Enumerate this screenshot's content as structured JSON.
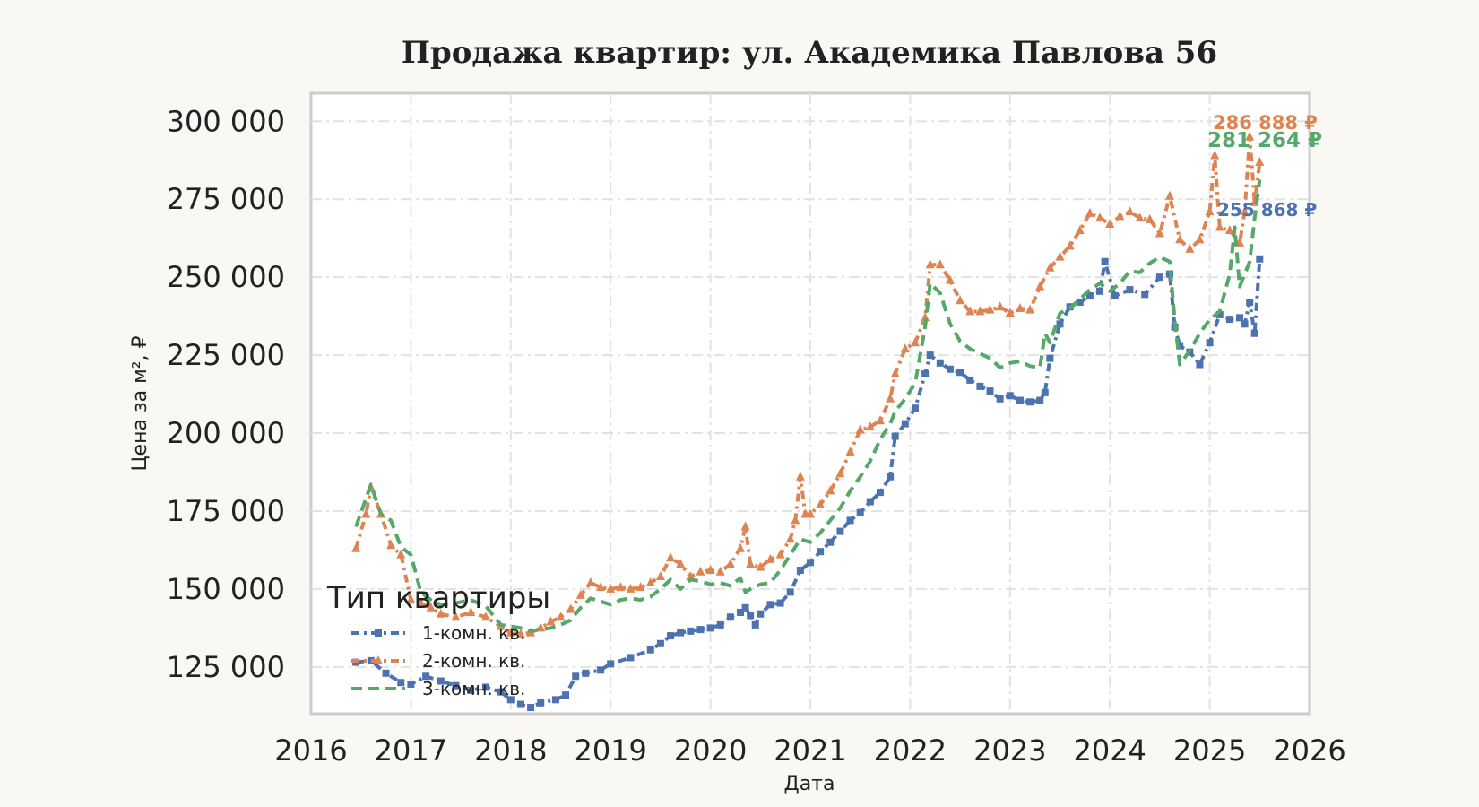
{
  "chart_data": {
    "type": "line",
    "title": "Продажа квартир: ул. Академика Павлова 56",
    "xlabel": "Дата",
    "ylabel": "Цена за м², ₽",
    "xlim": [
      2016,
      2026
    ],
    "ylim": [
      110000,
      309000
    ],
    "x_ticks": [
      "2016",
      "2017",
      "2018",
      "2019",
      "2020",
      "2021",
      "2022",
      "2023",
      "2024",
      "2025",
      "2026"
    ],
    "y_ticks": [
      {
        "value": 125000,
        "label": "125 000"
      },
      {
        "value": 150000,
        "label": "150 000"
      },
      {
        "value": 175000,
        "label": "175 000"
      },
      {
        "value": 200000,
        "label": "200 000"
      },
      {
        "value": 225000,
        "label": "225 000"
      },
      {
        "value": 250000,
        "label": "250 000"
      },
      {
        "value": 275000,
        "label": "275 000"
      },
      {
        "value": 300000,
        "label": "300 000"
      }
    ],
    "grid": true,
    "legend": {
      "title": "Тип квартиры",
      "position": "lower-left"
    },
    "series": [
      {
        "name": "1-комн. кв.",
        "color": "#4c72b0",
        "dash": "dashdot",
        "marker": "square",
        "end_label": "255 868 ₽",
        "points": [
          [
            2016.45,
            126500
          ],
          [
            2016.6,
            127000
          ],
          [
            2016.75,
            123000
          ],
          [
            2016.9,
            120000
          ],
          [
            2017.0,
            119500
          ],
          [
            2017.15,
            122000
          ],
          [
            2017.3,
            120500
          ],
          [
            2017.45,
            119000
          ],
          [
            2017.6,
            117500
          ],
          [
            2017.75,
            118500
          ],
          [
            2017.9,
            117000
          ],
          [
            2018.0,
            114500
          ],
          [
            2018.1,
            113000
          ],
          [
            2018.2,
            112000
          ],
          [
            2018.3,
            113500
          ],
          [
            2018.45,
            114500
          ],
          [
            2018.55,
            116000
          ],
          [
            2018.65,
            122000
          ],
          [
            2018.75,
            123000
          ],
          [
            2018.9,
            124000
          ],
          [
            2019.0,
            126000
          ],
          [
            2019.2,
            128000
          ],
          [
            2019.4,
            130500
          ],
          [
            2019.5,
            132500
          ],
          [
            2019.6,
            135000
          ],
          [
            2019.7,
            136000
          ],
          [
            2019.8,
            136500
          ],
          [
            2019.9,
            137000
          ],
          [
            2020.0,
            137500
          ],
          [
            2020.1,
            138500
          ],
          [
            2020.2,
            141000
          ],
          [
            2020.3,
            142500
          ],
          [
            2020.35,
            144000
          ],
          [
            2020.4,
            141500
          ],
          [
            2020.45,
            138500
          ],
          [
            2020.5,
            142000
          ],
          [
            2020.6,
            145000
          ],
          [
            2020.7,
            145500
          ],
          [
            2020.8,
            149000
          ],
          [
            2020.9,
            156000
          ],
          [
            2021.0,
            158500
          ],
          [
            2021.1,
            162000
          ],
          [
            2021.2,
            165000
          ],
          [
            2021.3,
            168500
          ],
          [
            2021.4,
            172000
          ],
          [
            2021.5,
            174500
          ],
          [
            2021.6,
            178000
          ],
          [
            2021.7,
            181000
          ],
          [
            2021.8,
            186000
          ],
          [
            2021.85,
            199000
          ],
          [
            2021.95,
            203000
          ],
          [
            2022.05,
            208000
          ],
          [
            2022.15,
            219000
          ],
          [
            2022.2,
            225000
          ],
          [
            2022.3,
            222500
          ],
          [
            2022.4,
            220500
          ],
          [
            2022.5,
            219500
          ],
          [
            2022.6,
            217000
          ],
          [
            2022.7,
            215000
          ],
          [
            2022.8,
            213500
          ],
          [
            2022.9,
            211000
          ],
          [
            2023.0,
            212000
          ],
          [
            2023.1,
            210500
          ],
          [
            2023.2,
            210000
          ],
          [
            2023.3,
            210500
          ],
          [
            2023.35,
            213000
          ],
          [
            2023.4,
            224000
          ],
          [
            2023.5,
            235000
          ],
          [
            2023.6,
            240500
          ],
          [
            2023.7,
            242000
          ],
          [
            2023.8,
            244000
          ],
          [
            2023.9,
            245500
          ],
          [
            2023.95,
            255000
          ],
          [
            2024.05,
            244000
          ],
          [
            2024.2,
            246000
          ],
          [
            2024.35,
            244500
          ],
          [
            2024.5,
            250000
          ],
          [
            2024.6,
            251000
          ],
          [
            2024.65,
            234000
          ],
          [
            2024.7,
            228000
          ],
          [
            2024.8,
            226000
          ],
          [
            2024.9,
            222000
          ],
          [
            2025.0,
            229000
          ],
          [
            2025.1,
            238000
          ],
          [
            2025.2,
            236500
          ],
          [
            2025.3,
            237000
          ],
          [
            2025.35,
            235000
          ],
          [
            2025.4,
            242000
          ],
          [
            2025.45,
            232000
          ],
          [
            2025.5,
            255868
          ]
        ]
      },
      {
        "name": "2-комн. кв.",
        "color": "#dd8452",
        "dash": "dashdot",
        "marker": "triangle",
        "end_label": "286 888 ₽",
        "points": [
          [
            2016.45,
            163000
          ],
          [
            2016.55,
            174000
          ],
          [
            2016.6,
            182500
          ],
          [
            2016.7,
            174000
          ],
          [
            2016.8,
            164000
          ],
          [
            2016.9,
            161000
          ],
          [
            2017.0,
            146500
          ],
          [
            2017.1,
            145500
          ],
          [
            2017.2,
            144000
          ],
          [
            2017.3,
            142000
          ],
          [
            2017.45,
            141000
          ],
          [
            2017.6,
            142500
          ],
          [
            2017.75,
            141000
          ],
          [
            2017.9,
            138000
          ],
          [
            2018.0,
            136000
          ],
          [
            2018.1,
            135500
          ],
          [
            2018.2,
            136000
          ],
          [
            2018.3,
            137500
          ],
          [
            2018.4,
            139500
          ],
          [
            2018.5,
            141000
          ],
          [
            2018.6,
            143500
          ],
          [
            2018.7,
            148000
          ],
          [
            2018.8,
            152000
          ],
          [
            2018.9,
            150500
          ],
          [
            2019.0,
            150000
          ],
          [
            2019.1,
            150500
          ],
          [
            2019.2,
            150000
          ],
          [
            2019.3,
            150500
          ],
          [
            2019.4,
            152000
          ],
          [
            2019.5,
            154000
          ],
          [
            2019.6,
            160000
          ],
          [
            2019.7,
            158000
          ],
          [
            2019.8,
            154000
          ],
          [
            2019.9,
            155500
          ],
          [
            2020.0,
            156000
          ],
          [
            2020.1,
            155500
          ],
          [
            2020.2,
            158000
          ],
          [
            2020.3,
            163000
          ],
          [
            2020.35,
            170000
          ],
          [
            2020.4,
            158000
          ],
          [
            2020.5,
            157000
          ],
          [
            2020.6,
            159500
          ],
          [
            2020.7,
            161000
          ],
          [
            2020.8,
            166000
          ],
          [
            2020.85,
            172000
          ],
          [
            2020.9,
            186000
          ],
          [
            2020.95,
            174000
          ],
          [
            2021.0,
            174000
          ],
          [
            2021.1,
            177000
          ],
          [
            2021.2,
            181500
          ],
          [
            2021.3,
            187000
          ],
          [
            2021.4,
            194000
          ],
          [
            2021.5,
            201000
          ],
          [
            2021.6,
            202000
          ],
          [
            2021.7,
            204000
          ],
          [
            2021.8,
            211000
          ],
          [
            2021.85,
            219000
          ],
          [
            2021.95,
            227000
          ],
          [
            2022.05,
            229000
          ],
          [
            2022.15,
            237000
          ],
          [
            2022.2,
            254000
          ],
          [
            2022.3,
            254000
          ],
          [
            2022.4,
            249000
          ],
          [
            2022.5,
            242500
          ],
          [
            2022.6,
            239000
          ],
          [
            2022.7,
            239000
          ],
          [
            2022.8,
            239500
          ],
          [
            2022.9,
            240500
          ],
          [
            2023.0,
            238500
          ],
          [
            2023.1,
            240000
          ],
          [
            2023.2,
            239500
          ],
          [
            2023.3,
            247000
          ],
          [
            2023.4,
            253000
          ],
          [
            2023.5,
            256500
          ],
          [
            2023.6,
            260000
          ],
          [
            2023.7,
            265000
          ],
          [
            2023.8,
            270500
          ],
          [
            2023.9,
            269000
          ],
          [
            2024.0,
            267000
          ],
          [
            2024.1,
            269500
          ],
          [
            2024.2,
            271000
          ],
          [
            2024.3,
            269000
          ],
          [
            2024.4,
            268500
          ],
          [
            2024.5,
            264000
          ],
          [
            2024.6,
            276000
          ],
          [
            2024.7,
            262000
          ],
          [
            2024.8,
            259000
          ],
          [
            2024.9,
            262000
          ],
          [
            2025.0,
            271000
          ],
          [
            2025.05,
            289000
          ],
          [
            2025.1,
            266000
          ],
          [
            2025.2,
            265000
          ],
          [
            2025.3,
            261000
          ],
          [
            2025.35,
            271000
          ],
          [
            2025.4,
            295000
          ],
          [
            2025.45,
            274000
          ],
          [
            2025.5,
            286888
          ]
        ]
      },
      {
        "name": "3-комн. кв.",
        "color": "#55a868",
        "dash": "dashed",
        "marker": "none",
        "end_label": "281 264 ₽",
        "points": [
          [
            2016.45,
            170000
          ],
          [
            2016.55,
            179000
          ],
          [
            2016.6,
            183500
          ],
          [
            2016.7,
            174000
          ],
          [
            2016.8,
            172000
          ],
          [
            2016.9,
            163500
          ],
          [
            2017.0,
            161000
          ],
          [
            2017.1,
            149000
          ],
          [
            2017.2,
            146500
          ],
          [
            2017.3,
            145000
          ],
          [
            2017.45,
            145500
          ],
          [
            2017.6,
            146500
          ],
          [
            2017.75,
            144500
          ],
          [
            2017.9,
            138500
          ],
          [
            2018.0,
            138000
          ],
          [
            2018.1,
            137500
          ],
          [
            2018.2,
            136500
          ],
          [
            2018.3,
            137000
          ],
          [
            2018.4,
            137500
          ],
          [
            2018.5,
            138500
          ],
          [
            2018.6,
            140000
          ],
          [
            2018.7,
            144000
          ],
          [
            2018.8,
            147000
          ],
          [
            2018.9,
            146000
          ],
          [
            2019.0,
            145000
          ],
          [
            2019.1,
            146500
          ],
          [
            2019.2,
            147000
          ],
          [
            2019.3,
            146500
          ],
          [
            2019.4,
            147500
          ],
          [
            2019.5,
            150000
          ],
          [
            2019.6,
            153000
          ],
          [
            2019.7,
            150000
          ],
          [
            2019.8,
            153000
          ],
          [
            2019.9,
            152500
          ],
          [
            2020.0,
            151500
          ],
          [
            2020.1,
            152000
          ],
          [
            2020.2,
            151000
          ],
          [
            2020.3,
            153500
          ],
          [
            2020.35,
            149000
          ],
          [
            2020.4,
            150000
          ],
          [
            2020.5,
            151500
          ],
          [
            2020.6,
            152000
          ],
          [
            2020.7,
            156000
          ],
          [
            2020.8,
            161000
          ],
          [
            2020.9,
            166000
          ],
          [
            2021.0,
            165000
          ],
          [
            2021.1,
            168000
          ],
          [
            2021.2,
            172000
          ],
          [
            2021.3,
            176000
          ],
          [
            2021.4,
            181500
          ],
          [
            2021.5,
            186000
          ],
          [
            2021.6,
            191000
          ],
          [
            2021.7,
            198000
          ],
          [
            2021.8,
            203000
          ],
          [
            2021.85,
            207000
          ],
          [
            2021.95,
            211000
          ],
          [
            2022.05,
            216000
          ],
          [
            2022.15,
            234000
          ],
          [
            2022.2,
            248000
          ],
          [
            2022.3,
            245000
          ],
          [
            2022.4,
            235000
          ],
          [
            2022.5,
            229500
          ],
          [
            2022.6,
            227000
          ],
          [
            2022.7,
            225500
          ],
          [
            2022.8,
            224000
          ],
          [
            2022.9,
            221000
          ],
          [
            2023.0,
            222500
          ],
          [
            2023.1,
            223000
          ],
          [
            2023.2,
            221500
          ],
          [
            2023.3,
            221000
          ],
          [
            2023.35,
            232000
          ],
          [
            2023.4,
            229000
          ],
          [
            2023.5,
            238500
          ],
          [
            2023.6,
            240000
          ],
          [
            2023.7,
            243000
          ],
          [
            2023.8,
            246000
          ],
          [
            2023.9,
            248000
          ],
          [
            2024.0,
            245500
          ],
          [
            2024.1,
            248000
          ],
          [
            2024.2,
            252000
          ],
          [
            2024.3,
            251500
          ],
          [
            2024.4,
            254500
          ],
          [
            2024.5,
            256500
          ],
          [
            2024.6,
            255000
          ],
          [
            2024.65,
            236000
          ],
          [
            2024.7,
            222000
          ],
          [
            2024.8,
            226500
          ],
          [
            2024.9,
            232000
          ],
          [
            2025.0,
            236500
          ],
          [
            2025.1,
            239000
          ],
          [
            2025.2,
            251000
          ],
          [
            2025.25,
            266000
          ],
          [
            2025.3,
            247000
          ],
          [
            2025.4,
            255000
          ],
          [
            2025.45,
            269000
          ],
          [
            2025.5,
            281264
          ]
        ]
      }
    ]
  }
}
